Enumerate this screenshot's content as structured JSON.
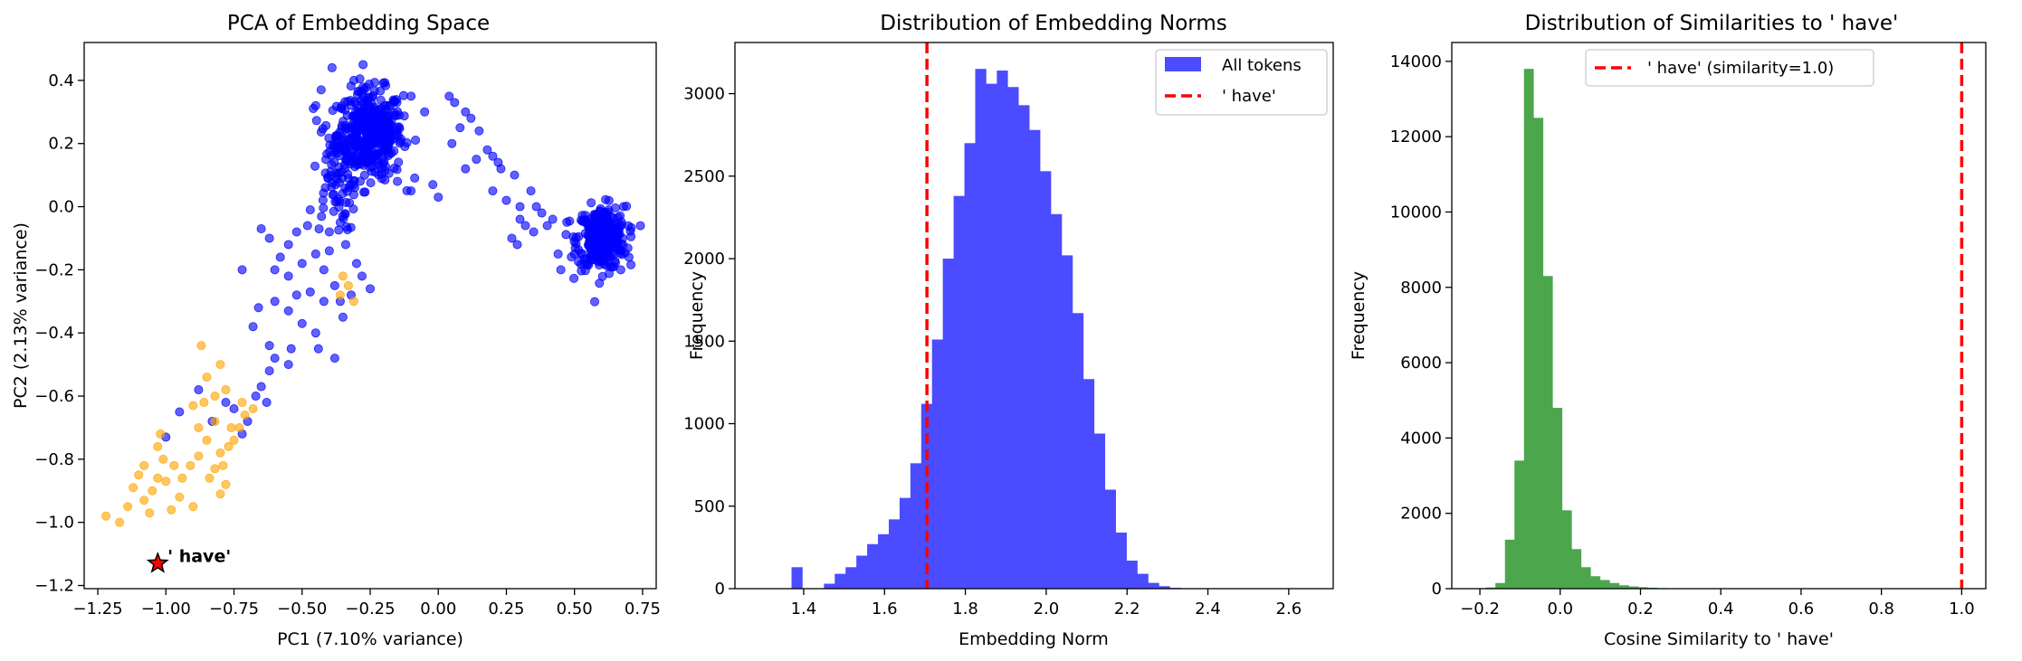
{
  "chart_data": [
    {
      "type": "scatter",
      "title": "PCA of Embedding Space",
      "xlabel": "PC1 (7.10% variance)",
      "ylabel": "PC2 (2.13% variance)",
      "xlim": [
        -1.3,
        0.8
      ],
      "ylim": [
        -1.21,
        0.52
      ],
      "xticks": [
        -1.25,
        -1.0,
        -0.75,
        -0.5,
        -0.25,
        0.0,
        0.25,
        0.5,
        0.75
      ],
      "xtick_labels": [
        "−1.25",
        "−1.00",
        "−0.75",
        "−0.50",
        "−0.25",
        "0.00",
        "0.25",
        "0.50",
        "0.75"
      ],
      "yticks": [
        -1.2,
        -1.0,
        -0.8,
        -0.6,
        -0.4,
        -0.2,
        0.0,
        0.2,
        0.4
      ],
      "ytick_labels": [
        "−1.2",
        "−1.0",
        "−0.8",
        "−0.6",
        "−0.4",
        "−0.2",
        "0.0",
        "0.2",
        "0.4"
      ],
      "grid": false,
      "colors": {
        "main": "#0000ff",
        "neighbors": "#ffa500",
        "target": "#ff0000"
      },
      "series": [
        {
          "clusters": [
            {
              "center": [
                -0.25,
                0.23
              ],
              "spread": [
                0.06,
                0.07
              ],
              "count": 420
            },
            {
              "center": [
                0.6,
                -0.1
              ],
              "spread": [
                0.045,
                0.05
              ],
              "count": 300
            },
            {
              "center": [
                -0.38,
                0.1
              ],
              "spread": [
                0.04,
                0.09
              ],
              "count": 80
            }
          ],
          "points": [
            [
              -0.39,
              0.44
            ],
            [
              -0.31,
              0.4
            ],
            [
              -0.43,
              0.37
            ],
            [
              -0.45,
              0.32
            ],
            [
              -0.1,
              0.35
            ],
            [
              -0.05,
              0.3
            ],
            [
              0.04,
              0.35
            ],
            [
              0.06,
              0.33
            ],
            [
              0.1,
              0.3
            ],
            [
              0.12,
              0.28
            ],
            [
              0.05,
              0.2
            ],
            [
              0.08,
              0.25
            ],
            [
              0.15,
              0.24
            ],
            [
              0.18,
              0.18
            ],
            [
              0.2,
              0.16
            ],
            [
              0.22,
              0.14
            ],
            [
              0.14,
              0.15
            ],
            [
              0.1,
              0.12
            ],
            [
              0.23,
              0.12
            ],
            [
              0.28,
              0.1
            ],
            [
              0.2,
              0.05
            ],
            [
              0.25,
              0.02
            ],
            [
              0.3,
              0.0
            ],
            [
              0.3,
              -0.04
            ],
            [
              0.32,
              -0.06
            ],
            [
              0.35,
              -0.08
            ],
            [
              0.38,
              -0.02
            ],
            [
              0.4,
              -0.06
            ],
            [
              0.27,
              -0.1
            ],
            [
              0.29,
              -0.12
            ],
            [
              0.34,
              0.05
            ],
            [
              0.36,
              0.0
            ],
            [
              0.42,
              -0.04
            ],
            [
              -0.02,
              0.07
            ],
            [
              0.0,
              0.03
            ],
            [
              -0.1,
              0.05
            ],
            [
              -0.15,
              0.08
            ],
            [
              -0.47,
              -0.01
            ],
            [
              -0.48,
              -0.06
            ],
            [
              -0.52,
              -0.08
            ],
            [
              -0.55,
              -0.12
            ],
            [
              -0.58,
              -0.16
            ],
            [
              -0.6,
              -0.2
            ],
            [
              -0.55,
              -0.22
            ],
            [
              -0.5,
              -0.18
            ],
            [
              -0.45,
              -0.15
            ],
            [
              -0.4,
              -0.14
            ],
            [
              -0.42,
              -0.2
            ],
            [
              -0.38,
              -0.25
            ],
            [
              -0.36,
              -0.3
            ],
            [
              -0.32,
              -0.28
            ],
            [
              -0.35,
              -0.35
            ],
            [
              -0.42,
              -0.3
            ],
            [
              -0.47,
              -0.27
            ],
            [
              -0.52,
              -0.28
            ],
            [
              -0.55,
              -0.33
            ],
            [
              -0.5,
              -0.37
            ],
            [
              -0.45,
              -0.4
            ],
            [
              -0.44,
              -0.45
            ],
            [
              -0.38,
              -0.48
            ],
            [
              -0.54,
              -0.45
            ],
            [
              -0.6,
              -0.48
            ],
            [
              -0.62,
              -0.52
            ],
            [
              -0.65,
              -0.57
            ],
            [
              -0.63,
              -0.62
            ],
            [
              -0.67,
              -0.6
            ],
            [
              -0.7,
              -0.68
            ],
            [
              -0.72,
              -0.72
            ],
            [
              -0.75,
              -0.64
            ],
            [
              -0.78,
              -0.62
            ],
            [
              -0.83,
              -0.68
            ],
            [
              -0.88,
              -0.58
            ],
            [
              -0.95,
              -0.65
            ],
            [
              -1.0,
              -0.73
            ],
            [
              -0.62,
              -0.44
            ],
            [
              -0.68,
              -0.38
            ],
            [
              -0.55,
              -0.5
            ],
            [
              -0.28,
              -0.22
            ],
            [
              -0.25,
              -0.26
            ],
            [
              -0.3,
              -0.18
            ],
            [
              -0.34,
              -0.12
            ],
            [
              -0.36,
              -0.05
            ],
            [
              -0.4,
              -0.08
            ],
            [
              -0.62,
              -0.1
            ],
            [
              -0.65,
              -0.07
            ],
            [
              -0.6,
              -0.3
            ],
            [
              -0.66,
              -0.32
            ],
            [
              -0.72,
              -0.2
            ],
            [
              0.67,
              -0.2
            ],
            [
              0.7,
              -0.16
            ],
            [
              0.68,
              0.0
            ],
            [
              0.45,
              -0.2
            ],
            [
              0.44,
              -0.15
            ]
          ]
        },
        {
          "points": [
            [
              -1.22,
              -0.98
            ],
            [
              -1.17,
              -1.0
            ],
            [
              -1.14,
              -0.95
            ],
            [
              -1.12,
              -0.89
            ],
            [
              -1.1,
              -0.85
            ],
            [
              -1.08,
              -0.93
            ],
            [
              -1.05,
              -0.9
            ],
            [
              -1.03,
              -0.86
            ],
            [
              -1.0,
              -0.87
            ],
            [
              -1.01,
              -0.8
            ],
            [
              -1.03,
              -0.76
            ],
            [
              -1.02,
              -0.72
            ],
            [
              -0.97,
              -0.82
            ],
            [
              -0.94,
              -0.86
            ],
            [
              -0.91,
              -0.82
            ],
            [
              -0.88,
              -0.79
            ],
            [
              -0.84,
              -0.86
            ],
            [
              -0.82,
              -0.83
            ],
            [
              -0.79,
              -0.82
            ],
            [
              -0.8,
              -0.78
            ],
            [
              -0.77,
              -0.76
            ],
            [
              -0.75,
              -0.74
            ],
            [
              -0.73,
              -0.7
            ],
            [
              -0.71,
              -0.66
            ],
            [
              -0.76,
              -0.7
            ],
            [
              -0.82,
              -0.68
            ],
            [
              -0.85,
              -0.74
            ],
            [
              -0.88,
              -0.7
            ],
            [
              -0.86,
              -0.62
            ],
            [
              -0.9,
              -0.63
            ],
            [
              -0.85,
              -0.54
            ],
            [
              -0.82,
              -0.6
            ],
            [
              -0.78,
              -0.58
            ],
            [
              -0.8,
              -0.5
            ],
            [
              -0.87,
              -0.44
            ],
            [
              -0.9,
              -0.95
            ],
            [
              -0.95,
              -0.92
            ],
            [
              -0.98,
              -0.96
            ],
            [
              -0.8,
              -0.91
            ],
            [
              -0.78,
              -0.88
            ],
            [
              -1.08,
              -0.82
            ],
            [
              -1.06,
              -0.97
            ],
            [
              -0.72,
              -0.62
            ],
            [
              -0.68,
              -0.64
            ],
            [
              -0.33,
              -0.25
            ],
            [
              -0.36,
              -0.28
            ],
            [
              -0.31,
              -0.3
            ],
            [
              -0.35,
              -0.22
            ]
          ]
        },
        {
          "points": [
            [
              -1.03,
              -1.13
            ]
          ]
        }
      ],
      "annotations": [
        {
          "text": "' have'",
          "x": -1.0,
          "y": -1.12
        }
      ]
    },
    {
      "type": "bar",
      "title": "Distribution of Embedding Norms",
      "xlabel": "Embedding Norm",
      "ylabel": "Frequency",
      "xlim": [
        1.23,
        2.71
      ],
      "ylim": [
        0,
        3310
      ],
      "xticks": [
        1.4,
        1.6,
        1.8,
        2.0,
        2.2,
        2.4,
        2.6
      ],
      "xtick_labels": [
        "1.4",
        "1.6",
        "1.8",
        "2.0",
        "2.2",
        "2.4",
        "2.6"
      ],
      "yticks": [
        0,
        500,
        1000,
        1500,
        2000,
        2500,
        3000
      ],
      "ytick_labels": [
        "0",
        "500",
        "1000",
        "1500",
        "2000",
        "2500",
        "3000"
      ],
      "grid": false,
      "bin_start": 1.37,
      "bin_width": 0.02673,
      "values": [
        130,
        0,
        0,
        30,
        90,
        130,
        200,
        270,
        330,
        420,
        550,
        760,
        1120,
        1510,
        2000,
        2380,
        2700,
        3150,
        3060,
        3140,
        3040,
        2930,
        2780,
        2530,
        2270,
        2020,
        1670,
        1270,
        940,
        600,
        340,
        170,
        90,
        35,
        15,
        5
      ],
      "colors": {
        "bars": "#4b4bff",
        "line": "#ff0000"
      },
      "vline": 1.705,
      "legend": {
        "position": "upper-right",
        "entries": [
          "All tokens",
          "' have'"
        ]
      }
    },
    {
      "type": "bar",
      "title": "Distribution of Similarities to ' have'",
      "xlabel": "Cosine Similarity to ' have'",
      "ylabel": "Frequency",
      "xlim": [
        -0.27,
        1.06
      ],
      "ylim": [
        0,
        14500
      ],
      "xticks": [
        -0.2,
        0.0,
        0.2,
        0.4,
        0.6,
        0.8,
        1.0
      ],
      "xtick_labels": [
        "−0.2",
        "0.0",
        "0.2",
        "0.4",
        "0.6",
        "0.8",
        "1.0"
      ],
      "yticks": [
        0,
        2000,
        4000,
        6000,
        8000,
        10000,
        12000,
        14000
      ],
      "ytick_labels": [
        "0",
        "2000",
        "4000",
        "6000",
        "8000",
        "10000",
        "12000",
        "14000"
      ],
      "grid": false,
      "bin_start": -0.185,
      "bin_width": 0.0237,
      "values": [
        30,
        150,
        1300,
        3400,
        13800,
        12500,
        8300,
        4800,
        2080,
        1050,
        570,
        330,
        230,
        150,
        90,
        60,
        40,
        25,
        15,
        10,
        5
      ],
      "colors": {
        "bars": "#4ca64c",
        "line": "#ff0000"
      },
      "vline": 1.0,
      "legend": {
        "position": "upper-center",
        "entries": [
          "' have' (similarity=1.0)"
        ]
      }
    }
  ]
}
